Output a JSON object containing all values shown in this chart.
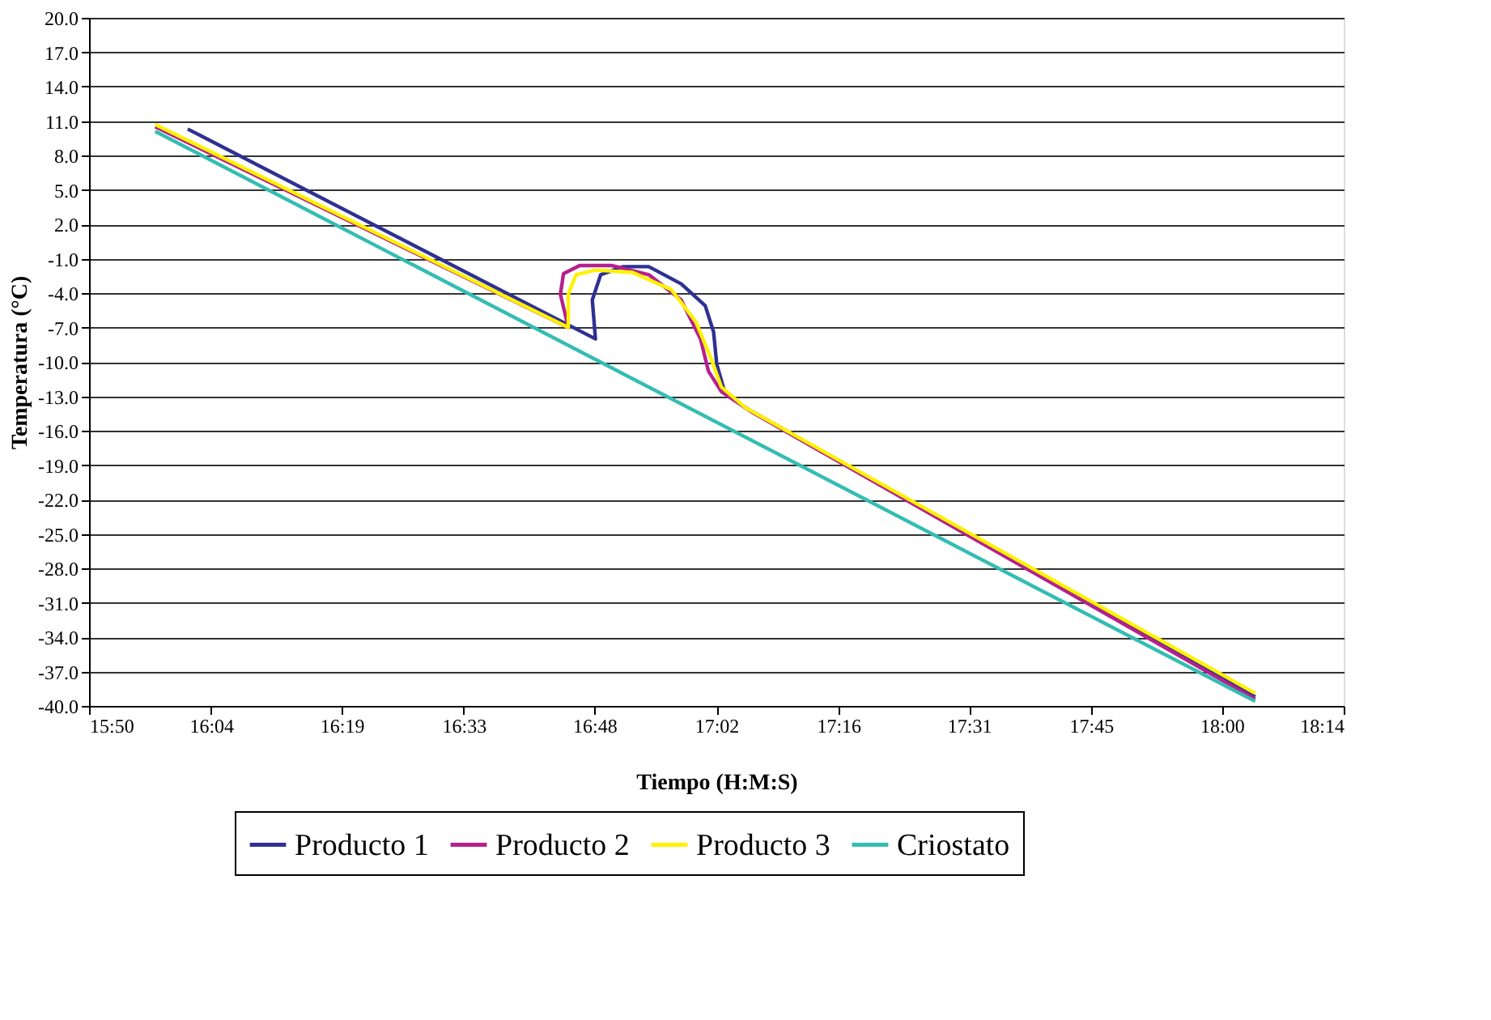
{
  "chart_data": {
    "type": "line",
    "xlabel": "Tiempo (H:M:S)",
    "ylabel": "Temperatura (°C)",
    "xlim": [
      15.8333,
      18.2333
    ],
    "xticks": [
      {
        "value": 15.8333,
        "label": "15:50"
      },
      {
        "value": 16.0667,
        "label": "16:04"
      },
      {
        "value": 16.3167,
        "label": "16:19"
      },
      {
        "value": 16.55,
        "label": "16:33"
      },
      {
        "value": 16.8,
        "label": "16:48"
      },
      {
        "value": 17.0333,
        "label": "17:02"
      },
      {
        "value": 17.2667,
        "label": "17:16"
      },
      {
        "value": 17.5167,
        "label": "17:31"
      },
      {
        "value": 17.75,
        "label": "17:45"
      },
      {
        "value": 18.0,
        "label": "18:00"
      },
      {
        "value": 18.2333,
        "label": "18:14"
      }
    ],
    "ylim": [
      -40,
      20
    ],
    "yticks": [
      {
        "value": 20,
        "label": "20.0"
      },
      {
        "value": 17,
        "label": "17.0"
      },
      {
        "value": 14,
        "label": "14.0"
      },
      {
        "value": 11,
        "label": "11.0"
      },
      {
        "value": 8,
        "label": "8.0"
      },
      {
        "value": 5,
        "label": "5.0"
      },
      {
        "value": 2,
        "label": "2.0"
      },
      {
        "value": -1,
        "label": "-1.0"
      },
      {
        "value": -4,
        "label": "-4.0"
      },
      {
        "value": -7,
        "label": "-7.0"
      },
      {
        "value": -10,
        "label": "-10.0"
      },
      {
        "value": -13,
        "label": "-13.0"
      },
      {
        "value": -16,
        "label": "-16.0"
      },
      {
        "value": -19,
        "label": "-19.0"
      },
      {
        "value": -22,
        "label": "-22.0"
      },
      {
        "value": -25,
        "label": "-25.0"
      },
      {
        "value": -28,
        "label": "-28.0"
      },
      {
        "value": -31,
        "label": "-31.0"
      },
      {
        "value": -34,
        "label": "-34.0"
      },
      {
        "value": -37,
        "label": "-37.0"
      },
      {
        "value": -40,
        "label": "-40.0"
      }
    ],
    "grid": "y",
    "legend": "bottom",
    "marker": "none",
    "line_style": "solid",
    "series": [
      {
        "name": "Producto 1",
        "color": "#2e3192",
        "x": [
          16.022,
          16.802,
          16.796,
          16.812,
          16.855,
          16.904,
          16.966,
          17.012,
          17.028,
          17.034,
          17.049,
          17.089,
          18.064
        ],
        "values": [
          10.3,
          -8.0,
          -4.6,
          -2.4,
          -1.7,
          -1.7,
          -3.2,
          -5.1,
          -7.4,
          -10.2,
          -12.6,
          -14.0,
          -39.2
        ]
      },
      {
        "name": "Producto 2",
        "color": "#b5208e",
        "x": [
          15.96,
          16.75,
          16.735,
          16.741,
          16.772,
          16.833,
          16.904,
          16.966,
          17.003,
          17.018,
          17.043,
          17.102,
          18.064
        ],
        "values": [
          10.5,
          -7.0,
          -4.1,
          -2.3,
          -1.6,
          -1.6,
          -2.4,
          -4.6,
          -8.0,
          -10.8,
          -12.6,
          -14.4,
          -39.4
        ]
      },
      {
        "name": "Producto 3",
        "color": "#fff200",
        "x": [
          15.96,
          16.75,
          16.75,
          16.765,
          16.802,
          16.873,
          16.947,
          16.994,
          17.024,
          17.043,
          17.089,
          18.064
        ],
        "values": [
          10.7,
          -7.0,
          -4.1,
          -2.4,
          -2.0,
          -2.2,
          -3.7,
          -6.5,
          -9.8,
          -12.2,
          -14.0,
          -38.9
        ]
      },
      {
        "name": "Criostato",
        "color": "#33bdb2",
        "x": [
          15.96,
          18.064
        ],
        "values": [
          10.1,
          -39.6
        ]
      }
    ]
  }
}
